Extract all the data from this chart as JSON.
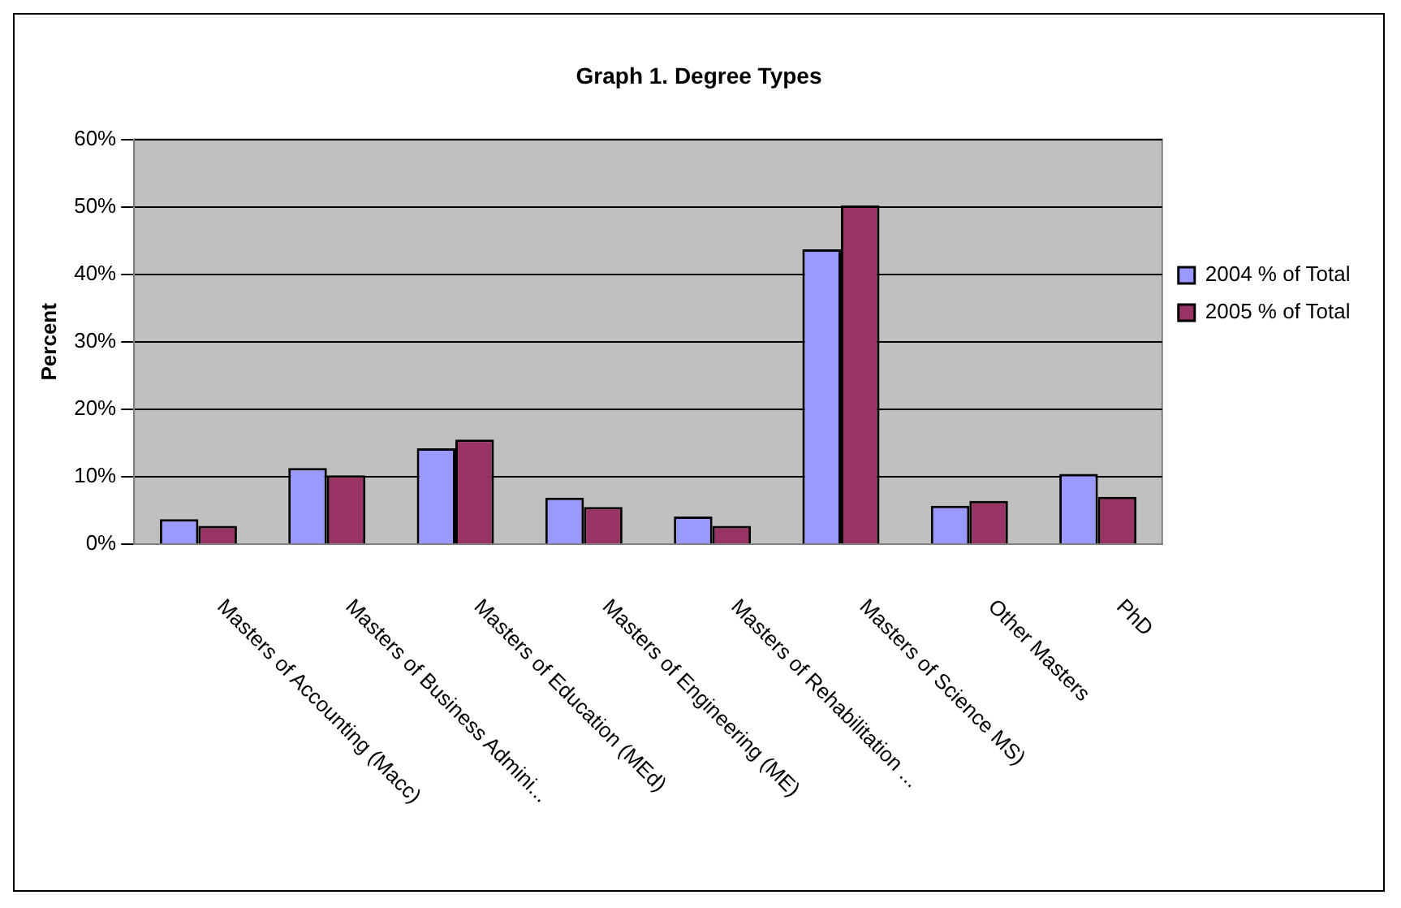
{
  "chart_data": {
    "type": "bar",
    "title": "Graph 1. Degree Types",
    "ylabel": "Percent",
    "categories": [
      "Masters of Accounting (Macc)",
      "Masters of Business Admini...",
      "Masters of Education (MEd)",
      "Masters of Engineering (ME)",
      "Masters of Rehabilitation ...",
      "Masters of Science MS)",
      "Other Masters",
      "PhD"
    ],
    "series": [
      {
        "name": "2004 % of Total",
        "color": "#9999ff",
        "values": [
          3.7,
          11.3,
          14.2,
          6.9,
          4.1,
          43.7,
          5.7,
          10.4
        ]
      },
      {
        "name": "2005 % of Total",
        "color": "#993366",
        "values": [
          2.7,
          10.2,
          15.5,
          5.5,
          2.7,
          50.2,
          6.4,
          7.0
        ]
      }
    ],
    "ylim": [
      0,
      60
    ],
    "yticks": [
      {
        "value": 0,
        "label": "0%"
      },
      {
        "value": 10,
        "label": "10%"
      },
      {
        "value": 20,
        "label": "20%"
      },
      {
        "value": 30,
        "label": "30%"
      },
      {
        "value": 40,
        "label": "40%"
      },
      {
        "value": 50,
        "label": "50%"
      },
      {
        "value": 60,
        "label": "60%"
      }
    ],
    "grid": "y",
    "legend": "right"
  }
}
